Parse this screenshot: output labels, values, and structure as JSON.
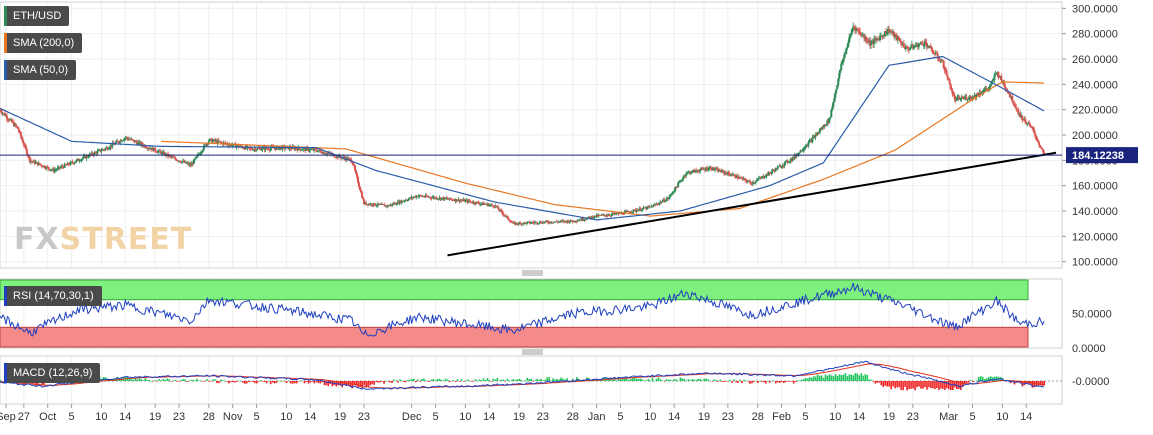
{
  "chart_data": [
    {
      "type": "candlestick",
      "pair": "ETH/USD",
      "legend": [
        "ETH/USD",
        "SMA (200,0)",
        "SMA (50,0)"
      ],
      "colors": {
        "up": "#2e8b57",
        "down": "#d9534f",
        "sma200": "#e87722",
        "sma50": "#2a5caa",
        "trendline": "#000000",
        "price_line": "#1a237e"
      },
      "ylim": [
        95,
        305
      ],
      "y_ticks": [
        "300.0000",
        "280.0000",
        "260.0000",
        "240.0000",
        "220.0000",
        "200.0000",
        "180.0000",
        "160.0000",
        "140.0000",
        "120.0000",
        "100.0000"
      ],
      "current_price": 184.12238,
      "current_price_label": "184.12238",
      "close_anchors": [
        [
          "2018-09-23",
          220
        ],
        [
          "2018-09-26",
          205
        ],
        [
          "2018-09-28",
          180
        ],
        [
          "2018-10-02",
          172
        ],
        [
          "2018-10-06",
          180
        ],
        [
          "2018-10-11",
          190
        ],
        [
          "2018-10-14",
          198
        ],
        [
          "2018-10-20",
          186
        ],
        [
          "2018-10-25",
          176
        ],
        [
          "2018-10-28",
          196
        ],
        [
          "2018-11-04",
          189
        ],
        [
          "2018-11-10",
          190
        ],
        [
          "2018-11-15",
          188
        ],
        [
          "2018-11-21",
          180
        ],
        [
          "2018-11-23",
          146
        ],
        [
          "2018-11-27",
          144
        ],
        [
          "2018-12-02",
          152
        ],
        [
          "2018-12-10",
          148
        ],
        [
          "2018-12-15",
          144
        ],
        [
          "2018-12-18",
          130
        ],
        [
          "2018-12-22",
          131
        ],
        [
          "2018-12-28",
          132
        ],
        [
          "2019-01-01",
          136
        ],
        [
          "2019-01-05",
          138
        ],
        [
          "2019-01-10",
          143
        ],
        [
          "2019-01-13",
          150
        ],
        [
          "2019-01-16",
          170
        ],
        [
          "2019-01-20",
          174
        ],
        [
          "2019-01-24",
          168
        ],
        [
          "2019-01-27",
          162
        ],
        [
          "2019-01-30",
          170
        ],
        [
          "2019-02-03",
          182
        ],
        [
          "2019-02-06",
          196
        ],
        [
          "2019-02-09",
          212
        ],
        [
          "2019-02-11",
          255
        ],
        [
          "2019-02-13",
          286
        ],
        [
          "2019-02-16",
          272
        ],
        [
          "2019-02-19",
          283
        ],
        [
          "2019-02-22",
          268
        ],
        [
          "2019-02-25",
          273
        ],
        [
          "2019-02-28",
          257
        ],
        [
          "2019-03-02",
          228
        ],
        [
          "2019-03-05",
          230
        ],
        [
          "2019-03-08",
          238
        ],
        [
          "2019-03-09",
          250
        ],
        [
          "2019-03-11",
          234
        ],
        [
          "2019-03-13",
          215
        ],
        [
          "2019-03-15",
          205
        ],
        [
          "2019-03-17",
          184.12
        ]
      ],
      "sma50_anchors": [
        [
          "2018-09-23",
          221
        ],
        [
          "2018-10-05",
          195
        ],
        [
          "2018-10-20",
          191
        ],
        [
          "2018-11-15",
          190
        ],
        [
          "2018-11-25",
          172
        ],
        [
          "2018-12-15",
          147
        ],
        [
          "2019-01-01",
          133
        ],
        [
          "2019-01-15",
          140
        ],
        [
          "2019-01-30",
          160
        ],
        [
          "2019-02-08",
          178
        ],
        [
          "2019-02-19",
          255
        ],
        [
          "2019-02-28",
          262
        ],
        [
          "2019-03-10",
          237
        ],
        [
          "2019-03-17",
          219
        ]
      ],
      "sma200_anchors": [
        [
          "2018-10-20",
          195
        ],
        [
          "2018-11-20",
          189
        ],
        [
          "2018-12-10",
          162
        ],
        [
          "2018-12-25",
          145
        ],
        [
          "2019-01-10",
          136
        ],
        [
          "2019-01-25",
          142
        ],
        [
          "2019-02-08",
          165
        ],
        [
          "2019-02-20",
          188
        ],
        [
          "2019-03-05",
          228
        ],
        [
          "2019-03-10",
          242
        ],
        [
          "2019-03-17",
          241
        ]
      ],
      "trendline": {
        "from": [
          "2018-12-07",
          105
        ],
        "to": [
          "2019-03-19",
          186
        ]
      }
    },
    {
      "type": "line",
      "indicator": "RSI",
      "label": "RSI (14,70,30,1)",
      "ylim": [
        0,
        100
      ],
      "y_ticks": [
        "50.0000",
        "0.0000"
      ],
      "overbought": 70,
      "oversold": 30,
      "colors": {
        "line": "#1f3fbf",
        "overbought_zone": "#7ef07e",
        "oversold_zone": "#f48a8a"
      },
      "anchors": [
        [
          "2018-09-23",
          45
        ],
        [
          "2018-09-28",
          22
        ],
        [
          "2018-10-06",
          55
        ],
        [
          "2018-10-14",
          62
        ],
        [
          "2018-10-25",
          40
        ],
        [
          "2018-10-28",
          70
        ],
        [
          "2018-11-10",
          55
        ],
        [
          "2018-11-21",
          40
        ],
        [
          "2018-11-23",
          18
        ],
        [
          "2018-12-02",
          45
        ],
        [
          "2018-12-18",
          25
        ],
        [
          "2018-12-28",
          50
        ],
        [
          "2019-01-10",
          60
        ],
        [
          "2019-01-16",
          80
        ],
        [
          "2019-01-27",
          48
        ],
        [
          "2019-02-06",
          72
        ],
        [
          "2019-02-13",
          88
        ],
        [
          "2019-02-22",
          60
        ],
        [
          "2019-03-02",
          30
        ],
        [
          "2019-03-09",
          68
        ],
        [
          "2019-03-13",
          35
        ],
        [
          "2019-03-17",
          38
        ]
      ]
    },
    {
      "type": "line",
      "indicator": "MACD",
      "label": "MACD (12,26,9)",
      "y_ticks": [
        "-0.0000"
      ],
      "colors": {
        "macd": "#1f3fbf",
        "signal": "#e0301e",
        "hist_up": "#22c55e",
        "hist_down": "#ef2020"
      },
      "anchors": [
        [
          "2018-09-23",
          -1
        ],
        [
          "2018-09-30",
          -4
        ],
        [
          "2018-10-14",
          3
        ],
        [
          "2018-10-28",
          4
        ],
        [
          "2018-11-15",
          1
        ],
        [
          "2018-11-23",
          -6
        ],
        [
          "2018-12-10",
          -4
        ],
        [
          "2018-12-20",
          -2
        ],
        [
          "2019-01-10",
          4
        ],
        [
          "2019-01-20",
          6
        ],
        [
          "2019-02-03",
          4
        ],
        [
          "2019-02-10",
          10
        ],
        [
          "2019-02-15",
          15
        ],
        [
          "2019-02-20",
          8
        ],
        [
          "2019-03-03",
          -4
        ],
        [
          "2019-03-09",
          2
        ],
        [
          "2019-03-17",
          -5
        ]
      ]
    }
  ],
  "legend_labels": {
    "eth": "ETH/USD",
    "sma200": "SMA (200,0)",
    "sma50": "SMA (50,0)"
  },
  "panel_labels": {
    "rsi": "RSI (14,70,30,1)",
    "macd": "MACD (12,26,9)"
  },
  "watermark": {
    "part1": "FX",
    "part2": "STREET"
  },
  "x_axis": {
    "labels": [
      {
        "date": "2018-09-24",
        "label": "Sep"
      },
      {
        "date": "2018-09-27",
        "label": "27"
      },
      {
        "date": "2018-10-01",
        "label": "Oct"
      },
      {
        "date": "2018-10-05",
        "label": "5"
      },
      {
        "date": "2018-10-10",
        "label": "10"
      },
      {
        "date": "2018-10-14",
        "label": "14"
      },
      {
        "date": "2018-10-19",
        "label": "19"
      },
      {
        "date": "2018-10-23",
        "label": "23"
      },
      {
        "date": "2018-10-28",
        "label": "28"
      },
      {
        "date": "2018-11-01",
        "label": "Nov"
      },
      {
        "date": "2018-11-05",
        "label": "5"
      },
      {
        "date": "2018-11-10",
        "label": "10"
      },
      {
        "date": "2018-11-14",
        "label": "14"
      },
      {
        "date": "2018-11-19",
        "label": "19"
      },
      {
        "date": "2018-11-23",
        "label": "23"
      },
      {
        "date": "2018-12-01",
        "label": "Dec"
      },
      {
        "date": "2018-12-05",
        "label": "5"
      },
      {
        "date": "2018-12-10",
        "label": "10"
      },
      {
        "date": "2018-12-14",
        "label": "14"
      },
      {
        "date": "2018-12-19",
        "label": "19"
      },
      {
        "date": "2018-12-23",
        "label": "23"
      },
      {
        "date": "2018-12-28",
        "label": "28"
      },
      {
        "date": "2019-01-01",
        "label": "Jan"
      },
      {
        "date": "2019-01-05",
        "label": "5"
      },
      {
        "date": "2019-01-10",
        "label": "10"
      },
      {
        "date": "2019-01-14",
        "label": "14"
      },
      {
        "date": "2019-01-19",
        "label": "19"
      },
      {
        "date": "2019-01-23",
        "label": "23"
      },
      {
        "date": "2019-01-28",
        "label": "28"
      },
      {
        "date": "2019-02-01",
        "label": "Feb"
      },
      {
        "date": "2019-02-05",
        "label": "5"
      },
      {
        "date": "2019-02-10",
        "label": "10"
      },
      {
        "date": "2019-02-14",
        "label": "14"
      },
      {
        "date": "2019-02-19",
        "label": "19"
      },
      {
        "date": "2019-02-23",
        "label": "23"
      },
      {
        "date": "2019-03-01",
        "label": "Mar"
      },
      {
        "date": "2019-03-05",
        "label": "5"
      },
      {
        "date": "2019-03-10",
        "label": "10"
      },
      {
        "date": "2019-03-14",
        "label": "14"
      }
    ],
    "range": [
      "2018-09-23",
      "2019-03-20"
    ]
  }
}
